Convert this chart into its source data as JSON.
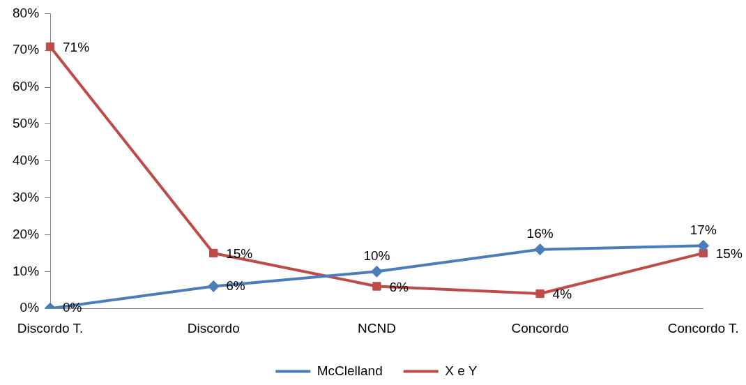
{
  "chart_data": {
    "type": "line",
    "categories": [
      "Discordo T.",
      "Discordo",
      "NCND",
      "Concordo",
      "Concordo T."
    ],
    "series": [
      {
        "name": "McClelland",
        "color": "#4a7ebb",
        "marker": "diamond",
        "values": [
          0,
          6,
          10,
          16,
          17
        ],
        "value_labels": [
          "0%",
          "6%",
          "10%",
          "16%",
          "17%"
        ]
      },
      {
        "name": "X e Y",
        "color": "#be4b48",
        "marker": "square",
        "values": [
          71,
          15,
          6,
          4,
          15
        ],
        "value_labels": [
          "71%",
          "15%",
          "6%",
          "4%",
          "15%"
        ]
      }
    ],
    "ylim": [
      0,
      80
    ],
    "yticks": [
      {
        "value": 0,
        "label": "0%"
      },
      {
        "value": 10,
        "label": "10%"
      },
      {
        "value": 20,
        "label": "20%"
      },
      {
        "value": 30,
        "label": "30%"
      },
      {
        "value": 40,
        "label": "40%"
      },
      {
        "value": 50,
        "label": "50%"
      },
      {
        "value": 60,
        "label": "60%"
      },
      {
        "value": 70,
        "label": "70%"
      },
      {
        "value": 80,
        "label": "80%"
      }
    ],
    "grid": false,
    "legend": "bottom",
    "line_style": "solid"
  }
}
